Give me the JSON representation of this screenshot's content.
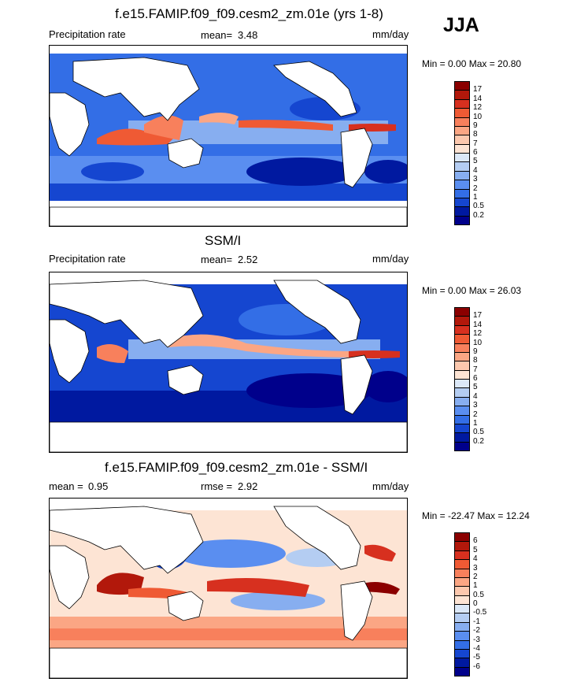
{
  "season": "JJA",
  "panels": [
    {
      "title": "f.e15.FAMIP.f09_f09.cesm2_zm.01e (yrs 1-8)",
      "left_label": "Precipitation rate",
      "stat_label": "mean=",
      "stat_value": "3.48",
      "extra_label": "",
      "extra_value": "",
      "units": "mm/day",
      "minmax": "Min =   0.00 Max =  20.80",
      "colorbar": {
        "ticks": [
          "17",
          "14",
          "12",
          "10",
          "9",
          "8",
          "7",
          "6",
          "5",
          "4",
          "3",
          "2",
          "1",
          "0.5",
          "0.2"
        ],
        "colors": [
          "#8b0000",
          "#b2180b",
          "#d7301f",
          "#ef5a34",
          "#f8805c",
          "#fba684",
          "#fcc8ae",
          "#fde4d4",
          "#dbe8f8",
          "#b4cdf2",
          "#87aef0",
          "#5a8ef0",
          "#336ee6",
          "#1546d0",
          "#0019a0",
          "#00008b"
        ]
      }
    },
    {
      "title": "SSM/I",
      "left_label": "Precipitation rate",
      "stat_label": "mean=",
      "stat_value": "2.52",
      "extra_label": "",
      "extra_value": "",
      "units": "mm/day",
      "minmax": "Min =   0.00 Max =  26.03",
      "colorbar": {
        "ticks": [
          "17",
          "14",
          "12",
          "10",
          "9",
          "8",
          "7",
          "6",
          "5",
          "4",
          "3",
          "2",
          "1",
          "0.5",
          "0.2"
        ],
        "colors": [
          "#8b0000",
          "#b2180b",
          "#d7301f",
          "#ef5a34",
          "#f8805c",
          "#fba684",
          "#fcc8ae",
          "#fde4d4",
          "#dbe8f8",
          "#b4cdf2",
          "#87aef0",
          "#5a8ef0",
          "#336ee6",
          "#1546d0",
          "#0019a0",
          "#00008b"
        ]
      }
    },
    {
      "title": "f.e15.FAMIP.f09_f09.cesm2_zm.01e - SSM/I",
      "left_label": "mean =",
      "stat_label": "rmse =",
      "stat_value": "2.92",
      "extra_label": "",
      "extra_value": "0.95",
      "units": "mm/day",
      "minmax": "Min = -22.47 Max =  12.24",
      "colorbar": {
        "ticks": [
          "6",
          "5",
          "4",
          "3",
          "2",
          "1",
          "0.5",
          "0",
          "-0.5",
          "-1",
          "-2",
          "-3",
          "-4",
          "-5",
          "-6"
        ],
        "colors": [
          "#8b0000",
          "#b2180b",
          "#d7301f",
          "#ef5a34",
          "#f8805c",
          "#fba684",
          "#fcc8ae",
          "#fde4d4",
          "#dbe8f8",
          "#b4cdf2",
          "#87aef0",
          "#5a8ef0",
          "#336ee6",
          "#1546d0",
          "#0019a0",
          "#00008b"
        ]
      }
    }
  ]
}
